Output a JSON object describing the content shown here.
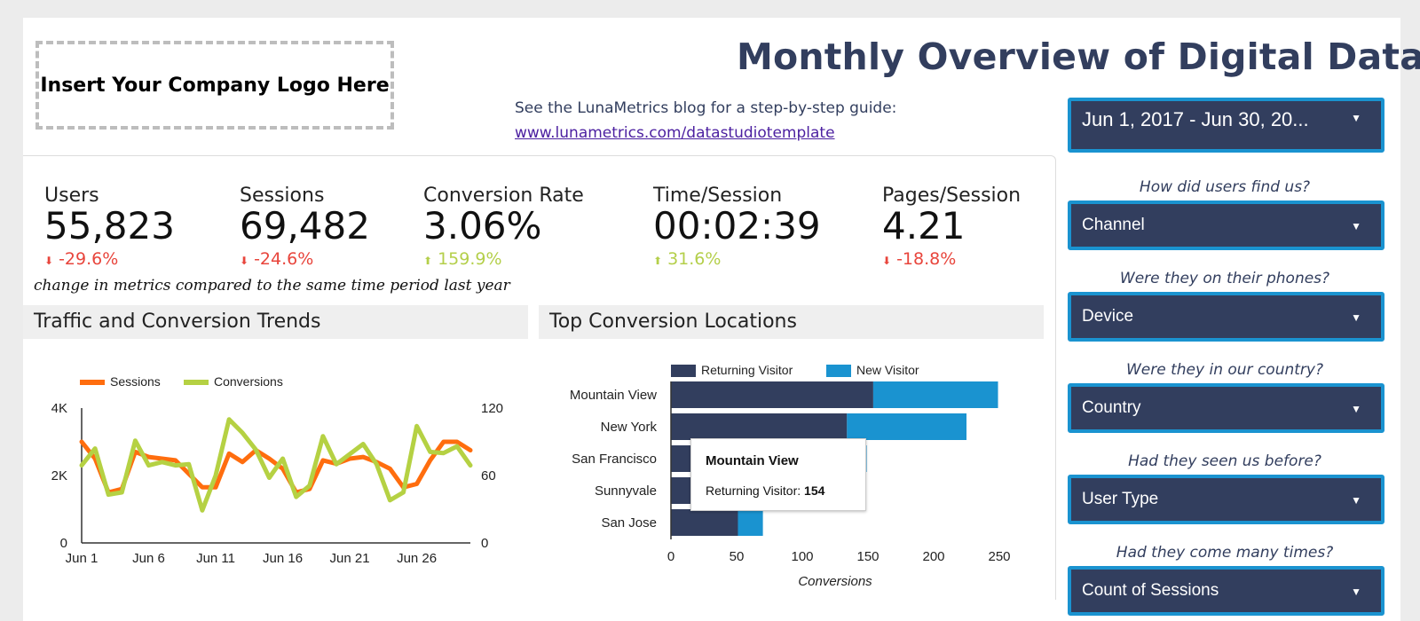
{
  "header": {
    "logo_placeholder": "Insert Your Company Logo Here",
    "title": "Monthly Overview of Digital Data",
    "guide_text": "See the LunaMetrics blog for a step-by-step guide:",
    "guide_link": "www.lunametrics.com/datastudiotemplate"
  },
  "kpis": [
    {
      "label": "Users",
      "value": "55,823",
      "change": "-29.6%",
      "direction": "down"
    },
    {
      "label": "Sessions",
      "value": "69,482",
      "change": "-24.6%",
      "direction": "down"
    },
    {
      "label": "Conversion Rate",
      "value": "3.06%",
      "change": "159.9%",
      "direction": "up"
    },
    {
      "label": "Time/Session",
      "value": "00:02:39",
      "change": "31.6%",
      "direction": "up"
    },
    {
      "label": "Pages/Session",
      "value": "4.21",
      "change": "-18.8%",
      "direction": "down"
    }
  ],
  "change_note": "change in metrics compared to the same time period last year",
  "sections": {
    "trends_title": "Traffic and Conversion Trends",
    "locations_title": "Top Conversion Locations"
  },
  "filters": {
    "date_range": "Jun 1, 2017 - Jun 30, 20...",
    "items": [
      {
        "question": "How did users find us?",
        "value": "Channel"
      },
      {
        "question": "Were they on their phones?",
        "value": "Device"
      },
      {
        "question": "Were they in our country?",
        "value": "Country"
      },
      {
        "question": "Had they seen us before?",
        "value": "User Type"
      },
      {
        "question": "Had they come many times?",
        "value": "Count of Sessions"
      }
    ]
  },
  "colors": {
    "navy": "#323e5e",
    "blue": "#1a93d0",
    "sessions": "#ff6d0e",
    "conversions": "#b5d143",
    "down": "#e8453c",
    "up": "#b4cf4a"
  },
  "tooltip": {
    "title": "Mountain View",
    "series": "Returning Visitor:",
    "value": "154"
  },
  "chart_data": [
    {
      "type": "line",
      "title": "Traffic and Conversion Trends",
      "x": [
        "Jun 1",
        "Jun 2",
        "Jun 3",
        "Jun 4",
        "Jun 5",
        "Jun 6",
        "Jun 7",
        "Jun 8",
        "Jun 9",
        "Jun 10",
        "Jun 11",
        "Jun 12",
        "Jun 13",
        "Jun 14",
        "Jun 15",
        "Jun 16",
        "Jun 17",
        "Jun 18",
        "Jun 19",
        "Jun 20",
        "Jun 21",
        "Jun 22",
        "Jun 23",
        "Jun 24",
        "Jun 25",
        "Jun 26",
        "Jun 27",
        "Jun 28",
        "Jun 29",
        "Jun 30"
      ],
      "x_tick_labels": [
        "Jun 1",
        "Jun 6",
        "Jun 11",
        "Jun 16",
        "Jun 21",
        "Jun 26"
      ],
      "series": [
        {
          "name": "Sessions",
          "axis": "left",
          "values": [
            3000,
            2500,
            1500,
            1600,
            2700,
            2550,
            2500,
            2450,
            2050,
            1650,
            1650,
            2650,
            2400,
            2750,
            2500,
            2200,
            1500,
            1600,
            2450,
            2350,
            2500,
            2550,
            2400,
            2200,
            1650,
            1750,
            2450,
            3000,
            3000,
            2750
          ]
        },
        {
          "name": "Conversions",
          "axis": "right",
          "values": [
            69,
            84,
            43,
            45,
            91,
            69,
            72,
            69,
            70,
            29,
            60,
            110,
            98,
            83,
            58,
            75,
            41,
            51,
            95,
            70,
            79,
            88,
            70,
            38,
            45,
            104,
            81,
            80,
            86,
            69
          ]
        }
      ],
      "y_left": {
        "ticks": [
          "0",
          "2K",
          "4K"
        ],
        "range": [
          0,
          4000
        ]
      },
      "y_right": {
        "ticks": [
          "0",
          "60",
          "120"
        ],
        "range": [
          0,
          120
        ]
      },
      "legend": "top-left"
    },
    {
      "type": "bar",
      "orientation": "horizontal",
      "stacked": true,
      "title": "Top Conversion Locations",
      "categories": [
        "Mountain View",
        "New York",
        "San Francisco",
        "Sunnyvale",
        "San Jose"
      ],
      "series": [
        {
          "name": "Returning Visitor",
          "values": [
            154,
            134,
            132,
            130,
            51
          ]
        },
        {
          "name": "New Visitor",
          "values": [
            95,
            91,
            17,
            12,
            19
          ]
        }
      ],
      "x_ticks": [
        "0",
        "50",
        "100",
        "150",
        "200",
        "250"
      ],
      "xlim": [
        0,
        250
      ],
      "xlabel": "Conversions",
      "legend": "top"
    }
  ]
}
